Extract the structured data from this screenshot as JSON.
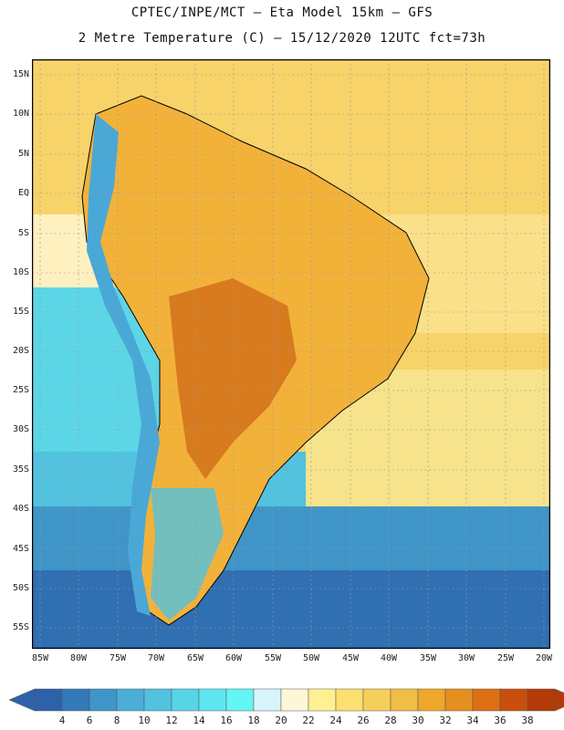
{
  "title": {
    "line1": "CPTEC/INPE/MCT –  Eta Model 15km – GFS",
    "line2": "2 Metre Temperature (C) – 15/12/2020 12UTC fct=73h"
  },
  "map": {
    "region": "South America",
    "lat_ticks": [
      "15N",
      "10N",
      "5N",
      "EQ",
      "5S",
      "10S",
      "15S",
      "20S",
      "25S",
      "30S",
      "35S",
      "40S",
      "45S",
      "50S",
      "55S"
    ],
    "lon_ticks": [
      "85W",
      "80W",
      "75W",
      "70W",
      "65W",
      "60W",
      "55W",
      "50W",
      "45W",
      "40W",
      "35W",
      "30W",
      "25W",
      "20W"
    ],
    "colors": {
      "land_ocean_default": "#f7d36a",
      "warm_land": "#f2b23a",
      "hot_core": "#d87a1e",
      "cool_ocean": "#5cd6e6",
      "cold_ocean": "#2f6fb2",
      "andes": "#4aa8d6",
      "border": "#000000",
      "grid": "#9a9a9a"
    }
  },
  "colorbar": {
    "labels": [
      "4",
      "6",
      "8",
      "10",
      "12",
      "14",
      "16",
      "18",
      "20",
      "22",
      "24",
      "26",
      "28",
      "30",
      "32",
      "34",
      "36",
      "38"
    ],
    "colors": [
      "#2e62a8",
      "#3479b8",
      "#3f95c8",
      "#4aaed6",
      "#52c2df",
      "#58d4e8",
      "#5ee6f0",
      "#64f6f6",
      "#d6f5fa",
      "#fff6d8",
      "#fff191",
      "#fce071",
      "#f6cf5b",
      "#f0bd45",
      "#eda82b",
      "#e58f1f",
      "#dc6f12",
      "#c8500c",
      "#b43a08"
    ]
  }
}
